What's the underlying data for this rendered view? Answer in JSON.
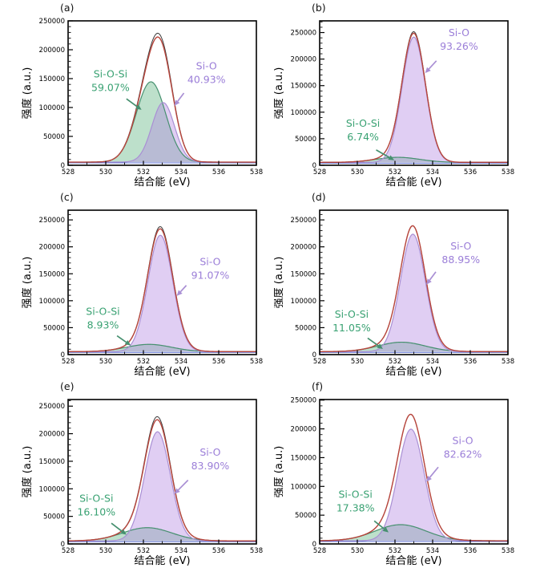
{
  "colors": {
    "green_stroke": "#46906f",
    "green_fill": "rgba(109,186,140,0.45)",
    "purple_stroke": "#a98fd4",
    "purple_fill": "rgba(178,133,224,0.40)",
    "envelope": "#b8453c",
    "raw": "#3c3c3c",
    "baseline": "#5b6ed0",
    "green_text": "#3aa273",
    "purple_text": "#9b7ed8",
    "axis": "#000000",
    "background": "#ffffff"
  },
  "chart_data": [
    {
      "type": "area",
      "panel_label": "(a)",
      "xlabel": "结合能 (eV)",
      "ylabel": "强度 (a.u.)",
      "xlim": [
        528,
        538
      ],
      "ylim": [
        0,
        250000
      ],
      "xticks": [
        528,
        530,
        532,
        534,
        536,
        538
      ],
      "yticks": [
        0,
        50000,
        100000,
        150000,
        200000,
        250000
      ],
      "x_minor_step": 1,
      "y_minor_step": 10000,
      "grid": false,
      "baseline": 5500,
      "raw_scale": 1.03,
      "components": [
        {
          "name": "Si-O-Si",
          "share_pct": 59.07,
          "center": 532.4,
          "sigma": 0.78,
          "amplitude": 139000,
          "color_key": "green"
        },
        {
          "name": "Si-O",
          "share_pct": 40.93,
          "center": 533.05,
          "sigma": 0.6,
          "amplitude": 103000,
          "color_key": "purple"
        }
      ],
      "annotations": [
        {
          "lines": [
            "Si-O-Si",
            "59.07%"
          ],
          "color_key": "green",
          "x": 530.25,
          "y": 152000,
          "arrow": [
            531.1,
            115000,
            531.9,
            96000
          ]
        },
        {
          "lines": [
            "Si-O",
            "40.93%"
          ],
          "color_key": "purple",
          "x": 535.35,
          "y": 166000,
          "arrow": [
            534.15,
            125000,
            533.64,
            103000
          ]
        }
      ]
    },
    {
      "type": "area",
      "panel_label": "(b)",
      "xlabel": "结合能 (eV)",
      "ylabel": "强度 (a.u.)",
      "xlim": [
        528,
        538
      ],
      "ylim": [
        0,
        272000
      ],
      "xticks": [
        528,
        530,
        532,
        534,
        536,
        538
      ],
      "yticks": [
        0,
        50000,
        100000,
        150000,
        200000,
        250000
      ],
      "x_minor_step": 1,
      "y_minor_step": 10000,
      "grid": false,
      "baseline": 5500,
      "raw_scale": 1.012,
      "components": [
        {
          "name": "Si-O-Si",
          "share_pct": 6.74,
          "center": 532.15,
          "sigma": 1.15,
          "amplitude": 9500,
          "color_key": "green"
        },
        {
          "name": "Si-O",
          "share_pct": 93.26,
          "center": 533.0,
          "sigma": 0.62,
          "amplitude": 236000,
          "color_key": "purple"
        }
      ],
      "annotations": [
        {
          "lines": [
            "Si-O",
            "93.26%"
          ],
          "color_key": "purple",
          "x": 535.4,
          "y": 243000,
          "arrow": [
            534.2,
            196700,
            533.6,
            173600
          ]
        },
        {
          "lines": [
            "Si-O-Si",
            "6.74%"
          ],
          "color_key": "green",
          "x": 530.3,
          "y": 72300,
          "arrow": [
            531.0,
            28900,
            531.96,
            9500
          ]
        }
      ]
    },
    {
      "type": "area",
      "panel_label": "(c)",
      "xlabel": "结合能 (eV)",
      "ylabel": "强度 (a.u.)",
      "xlim": [
        528,
        538
      ],
      "ylim": [
        0,
        268000
      ],
      "xticks": [
        528,
        530,
        532,
        534,
        536,
        538
      ],
      "yticks": [
        0,
        50000,
        100000,
        150000,
        200000,
        250000
      ],
      "x_minor_step": 1,
      "y_minor_step": 10000,
      "grid": false,
      "baseline": 5500,
      "raw_scale": 1.018,
      "components": [
        {
          "name": "Si-O-Si",
          "share_pct": 8.93,
          "center": 532.3,
          "sigma": 1.2,
          "amplitude": 13500,
          "color_key": "green"
        },
        {
          "name": "Si-O",
          "share_pct": 91.07,
          "center": 532.9,
          "sigma": 0.66,
          "amplitude": 216000,
          "color_key": "purple"
        }
      ],
      "annotations": [
        {
          "lines": [
            "Si-O",
            "91.07%"
          ],
          "color_key": "purple",
          "x": 535.55,
          "y": 166000,
          "arrow": [
            534.28,
            128400,
            533.77,
            108900
          ]
        },
        {
          "lines": [
            "Si-O-Si",
            "8.93%"
          ],
          "color_key": "green",
          "x": 529.85,
          "y": 74000,
          "arrow": [
            530.6,
            34900,
            531.33,
            17000
          ]
        }
      ]
    },
    {
      "type": "area",
      "panel_label": "(d)",
      "xlabel": "结合能 (eV)",
      "ylabel": "强度 (a.u.)",
      "xlim": [
        528,
        538
      ],
      "ylim": [
        0,
        268000
      ],
      "xticks": [
        528,
        530,
        532,
        534,
        536,
        538
      ],
      "yticks": [
        0,
        50000,
        100000,
        150000,
        200000,
        250000
      ],
      "x_minor_step": 1,
      "y_minor_step": 10000,
      "grid": false,
      "baseline": 5500,
      "raw_scale": 1.0,
      "components": [
        {
          "name": "Si-O-Si",
          "share_pct": 11.05,
          "center": 532.35,
          "sigma": 1.25,
          "amplitude": 17500,
          "color_key": "green"
        },
        {
          "name": "Si-O",
          "share_pct": 88.95,
          "center": 532.95,
          "sigma": 0.66,
          "amplitude": 218000,
          "color_key": "purple"
        }
      ],
      "annotations": [
        {
          "lines": [
            "Si-O",
            "88.95%"
          ],
          "color_key": "purple",
          "x": 535.5,
          "y": 195400,
          "arrow": [
            534.17,
            153500,
            533.66,
            129800
          ]
        },
        {
          "lines": [
            "Si-O-Si",
            "11.05%"
          ],
          "color_key": "green",
          "x": 529.7,
          "y": 68400,
          "arrow": [
            530.55,
            30700,
            531.36,
            10500
          ]
        }
      ]
    },
    {
      "type": "area",
      "panel_label": "(e)",
      "xlabel": "结合能 (eV)",
      "ylabel": "强度 (a.u.)",
      "xlim": [
        528,
        538
      ],
      "ylim": [
        0,
        262000
      ],
      "xticks": [
        528,
        530,
        532,
        534,
        536,
        538
      ],
      "yticks": [
        0,
        50000,
        100000,
        150000,
        200000,
        250000
      ],
      "x_minor_step": 1,
      "y_minor_step": 10000,
      "grid": false,
      "baseline": 5500,
      "raw_scale": 1.025,
      "components": [
        {
          "name": "Si-O-Si",
          "share_pct": 16.1,
          "center": 532.2,
          "sigma": 1.3,
          "amplitude": 24000,
          "color_key": "green"
        },
        {
          "name": "Si-O",
          "share_pct": 83.9,
          "center": 532.75,
          "sigma": 0.68,
          "amplitude": 198000,
          "color_key": "purple"
        }
      ],
      "annotations": [
        {
          "lines": [
            "Si-O",
            "83.90%"
          ],
          "color_key": "purple",
          "x": 535.55,
          "y": 160300,
          "arrow": [
            534.37,
            115700,
            533.64,
            90600
          ]
        },
        {
          "lines": [
            "Si-O-Si",
            "16.10%"
          ],
          "color_key": "green",
          "x": 529.5,
          "y": 76600,
          "arrow": [
            530.3,
            37600,
            531.1,
            16700
          ]
        }
      ]
    },
    {
      "type": "area",
      "panel_label": "(f)",
      "xlabel": "结合能 (eV)",
      "ylabel": "强度 (a.u.)",
      "xlim": [
        528,
        538
      ],
      "ylim": [
        0,
        251000
      ],
      "xticks": [
        528,
        530,
        532,
        534,
        536,
        538
      ],
      "yticks": [
        0,
        50000,
        100000,
        150000,
        200000,
        250000
      ],
      "x_minor_step": 1,
      "y_minor_step": 10000,
      "grid": false,
      "baseline": 5500,
      "raw_scale": 1.0,
      "components": [
        {
          "name": "Si-O-Si",
          "share_pct": 17.38,
          "center": 532.3,
          "sigma": 1.35,
          "amplitude": 28000,
          "color_key": "green"
        },
        {
          "name": "Si-O",
          "share_pct": 82.62,
          "center": 532.85,
          "sigma": 0.7,
          "amplitude": 194000,
          "color_key": "purple"
        }
      ],
      "annotations": [
        {
          "lines": [
            "Si-O",
            "82.62%"
          ],
          "color_key": "purple",
          "x": 535.6,
          "y": 173600,
          "arrow": [
            534.3,
            133500,
            533.66,
            108100
          ]
        },
        {
          "lines": [
            "Si-O-Si",
            "17.38%"
          ],
          "color_key": "green",
          "x": 529.9,
          "y": 80100,
          "arrow": [
            530.9,
            40000,
            531.66,
            20000
          ]
        }
      ]
    }
  ]
}
